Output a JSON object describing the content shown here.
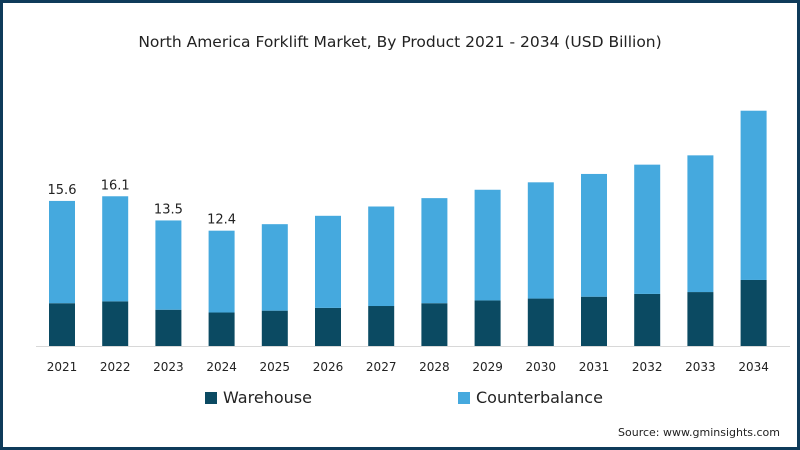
{
  "chart_data": {
    "type": "bar",
    "stacked": true,
    "title": "North America Forklift Market, By Product 2021 - 2034 (USD Billion)",
    "xlabel": "",
    "ylabel": "",
    "ylim": [
      0,
      26
    ],
    "grid": false,
    "legend_position": "bottom",
    "categories": [
      "2021",
      "2022",
      "2023",
      "2024",
      "2025",
      "2026",
      "2027",
      "2028",
      "2029",
      "2030",
      "2031",
      "2032",
      "2033",
      "2034"
    ],
    "series": [
      {
        "name": "Warehouse",
        "color": "#0b4a62",
        "values": [
          4.6,
          4.8,
          3.9,
          3.6,
          3.8,
          4.1,
          4.3,
          4.6,
          4.9,
          5.1,
          5.3,
          5.6,
          5.8,
          7.1
        ]
      },
      {
        "name": "Counterbalance",
        "color": "#45a9de",
        "values": [
          11.0,
          11.3,
          9.6,
          8.8,
          9.3,
          9.9,
          10.7,
          11.3,
          11.9,
          12.5,
          13.2,
          13.9,
          14.7,
          18.2
        ]
      }
    ],
    "data_labels": [
      "15.6",
      "16.1",
      "13.5",
      "12.4",
      "",
      "",
      "",
      "",
      "",
      "",
      "",
      "",
      "",
      ""
    ]
  },
  "source": "Source: www.gminsights.com"
}
